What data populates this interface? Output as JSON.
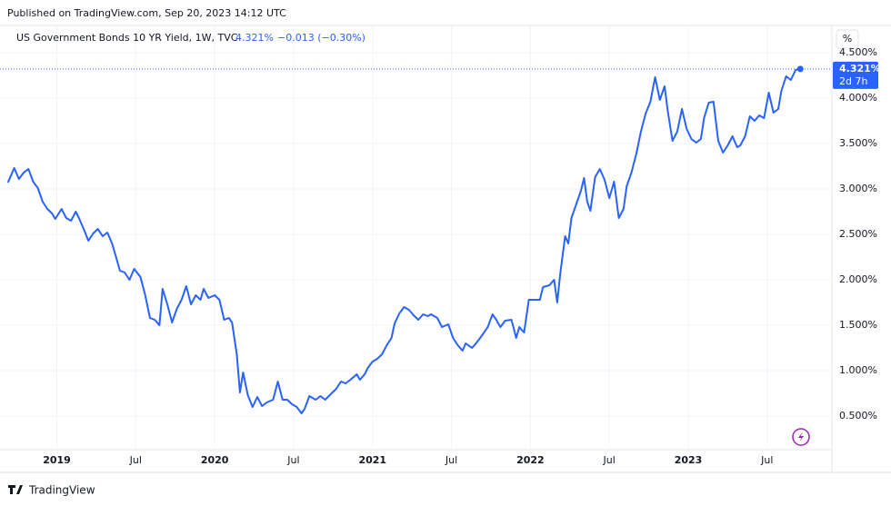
{
  "header": {
    "published": "Published on TradingView.com, Sep 20, 2023 14:12 UTC"
  },
  "chart_data": {
    "type": "line",
    "title": "US Government Bonds 10 YR Yield, 1W, TVC",
    "last_label": "4.321%",
    "change_label": "−0.013 (−0.30%)",
    "countdown": "2d 7h",
    "scale_button": "%",
    "grid": true,
    "log_scale": false,
    "xlim": [
      2018.64,
      2023.91
    ],
    "ylim": [
      -0.04,
      4.8
    ],
    "xticks": [
      2019,
      {
        "value": 2019.5,
        "label": "Jul"
      },
      2020,
      {
        "value": 2020.5,
        "label": "Jul"
      },
      2021,
      {
        "value": 2021.5,
        "label": "Jul"
      },
      2022,
      {
        "value": 2022.5,
        "label": "Jul"
      },
      2023,
      {
        "value": 2023.5,
        "label": "Jul"
      }
    ],
    "yticks": [
      {
        "value": 0.5,
        "label": "0.500%"
      },
      {
        "value": 1,
        "label": "1.000%"
      },
      {
        "value": 1.5,
        "label": "1.500%"
      },
      {
        "value": 2,
        "label": "2.000%"
      },
      {
        "value": 2.5,
        "label": "2.500%"
      },
      {
        "value": 3,
        "label": "3.000%"
      },
      {
        "value": 3.5,
        "label": "3.500%"
      },
      {
        "value": 4,
        "label": "4.000%"
      },
      {
        "value": 4.5,
        "label": "4.500%"
      }
    ],
    "x": [
      2018.69,
      2018.73,
      2018.76,
      2018.79,
      2018.82,
      2018.85,
      2018.88,
      2018.91,
      2018.94,
      2018.97,
      2018.99,
      2019.03,
      2019.06,
      2019.09,
      2019.12,
      2019.14,
      2019.17,
      2019.2,
      2019.23,
      2019.26,
      2019.29,
      2019.32,
      2019.35,
      2019.37,
      2019.4,
      2019.43,
      2019.46,
      2019.49,
      2019.53,
      2019.56,
      2019.59,
      2019.62,
      2019.65,
      2019.67,
      2019.7,
      2019.73,
      2019.76,
      2019.79,
      2019.82,
      2019.85,
      2019.88,
      2019.91,
      2019.93,
      2019.96,
      2020.0,
      2020.03,
      2020.06,
      2020.09,
      2020.11,
      2020.14,
      2020.16,
      2020.18,
      2020.21,
      2020.24,
      2020.27,
      2020.3,
      2020.33,
      2020.37,
      2020.4,
      2020.43,
      2020.46,
      2020.49,
      2020.52,
      2020.55,
      2020.57,
      2020.6,
      2020.64,
      2020.67,
      2020.7,
      2020.74,
      2020.77,
      2020.8,
      2020.83,
      2020.86,
      2020.9,
      2020.92,
      2020.95,
      2020.97,
      2021.0,
      2021.03,
      2021.06,
      2021.09,
      2021.12,
      2021.14,
      2021.17,
      2021.2,
      2021.23,
      2021.26,
      2021.29,
      2021.32,
      2021.35,
      2021.37,
      2021.41,
      2021.44,
      2021.48,
      2021.51,
      2021.54,
      2021.57,
      2021.59,
      2021.63,
      2021.66,
      2021.69,
      2021.73,
      2021.76,
      2021.78,
      2021.81,
      2021.84,
      2021.88,
      2021.91,
      2021.93,
      2021.96,
      2021.99,
      2022.02,
      2022.06,
      2022.08,
      2022.12,
      2022.15,
      2022.17,
      2022.19,
      2022.22,
      2022.24,
      2022.26,
      2022.29,
      2022.32,
      2022.34,
      2022.36,
      2022.38,
      2022.41,
      2022.44,
      2022.47,
      2022.5,
      2022.53,
      2022.56,
      2022.59,
      2022.61,
      2022.64,
      2022.67,
      2022.7,
      2022.73,
      2022.76,
      2022.79,
      2022.82,
      2022.85,
      2022.87,
      2022.9,
      2022.93,
      2022.96,
      2022.99,
      2023.02,
      2023.05,
      2023.08,
      2023.1,
      2023.13,
      2023.16,
      2023.19,
      2023.22,
      2023.25,
      2023.28,
      2023.31,
      2023.33,
      2023.36,
      2023.39,
      2023.42,
      2023.45,
      2023.48,
      2023.51,
      2023.54,
      2023.57,
      2023.59,
      2023.62,
      2023.65,
      2023.68,
      2023.71
    ],
    "series": [
      {
        "name": "US Government Bonds 10 YR Yield",
        "color": "#2962ff",
        "values": [
          3.07,
          3.23,
          3.11,
          3.18,
          3.22,
          3.08,
          3.01,
          2.86,
          2.78,
          2.73,
          2.67,
          2.78,
          2.68,
          2.65,
          2.75,
          2.68,
          2.56,
          2.43,
          2.51,
          2.56,
          2.48,
          2.52,
          2.4,
          2.28,
          2.1,
          2.08,
          2.0,
          2.12,
          2.03,
          1.83,
          1.58,
          1.56,
          1.5,
          1.9,
          1.73,
          1.53,
          1.68,
          1.78,
          1.93,
          1.73,
          1.83,
          1.78,
          1.9,
          1.8,
          1.83,
          1.78,
          1.56,
          1.58,
          1.53,
          1.18,
          0.76,
          0.98,
          0.73,
          0.6,
          0.71,
          0.61,
          0.65,
          0.68,
          0.88,
          0.68,
          0.68,
          0.63,
          0.6,
          0.53,
          0.58,
          0.72,
          0.68,
          0.72,
          0.68,
          0.75,
          0.8,
          0.88,
          0.86,
          0.9,
          0.96,
          0.9,
          0.96,
          1.03,
          1.1,
          1.13,
          1.18,
          1.28,
          1.36,
          1.52,
          1.63,
          1.7,
          1.67,
          1.61,
          1.56,
          1.62,
          1.6,
          1.62,
          1.58,
          1.48,
          1.51,
          1.36,
          1.28,
          1.22,
          1.3,
          1.25,
          1.31,
          1.38,
          1.48,
          1.62,
          1.57,
          1.48,
          1.55,
          1.56,
          1.36,
          1.48,
          1.42,
          1.78,
          1.78,
          1.78,
          1.92,
          1.94,
          2.0,
          1.75,
          2.08,
          2.48,
          2.4,
          2.68,
          2.83,
          2.98,
          3.12,
          2.86,
          2.76,
          3.13,
          3.22,
          3.1,
          2.9,
          3.08,
          2.68,
          2.78,
          3.03,
          3.18,
          3.38,
          3.63,
          3.83,
          3.96,
          4.23,
          3.98,
          4.13,
          3.86,
          3.53,
          3.63,
          3.88,
          3.66,
          3.55,
          3.51,
          3.55,
          3.78,
          3.95,
          3.96,
          3.53,
          3.4,
          3.48,
          3.58,
          3.46,
          3.48,
          3.58,
          3.8,
          3.75,
          3.81,
          3.78,
          4.06,
          3.84,
          3.88,
          4.08,
          4.24,
          4.2,
          4.31,
          4.321
        ]
      }
    ]
  },
  "footer": {
    "brand": "TradingView"
  }
}
